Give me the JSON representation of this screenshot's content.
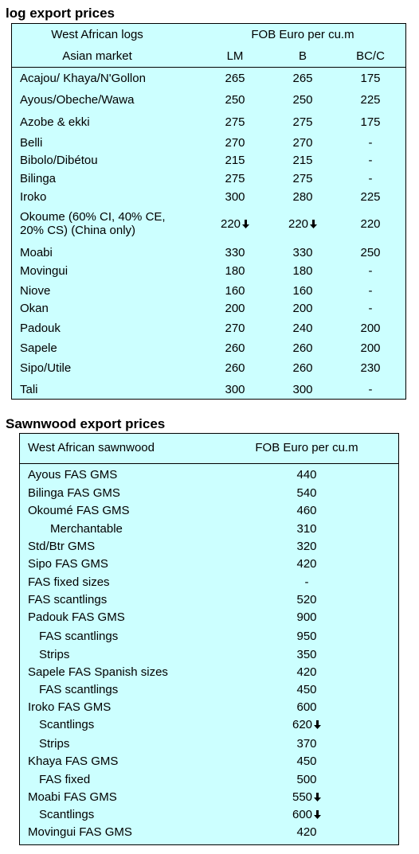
{
  "log": {
    "title": "log export prices",
    "header": {
      "col1_line1": "West African logs",
      "col1_line2": "Asian market",
      "price_heading": "FOB Euro per cu.m",
      "col_lm": "LM",
      "col_b": "B",
      "col_bc": "BC/C"
    },
    "rows": [
      {
        "name": "Acajou/ Khaya/N'Gollon",
        "lm": "265",
        "b": "265",
        "bc": "175"
      },
      {
        "name": "Ayous/Obeche/Wawa",
        "lm": "250",
        "b": "250",
        "bc": "225"
      },
      {
        "name": "Azobe & ekki",
        "lm": "275",
        "b": "275",
        "bc": "175"
      },
      {
        "name": "Belli",
        "lm": "270",
        "b": "270",
        "bc": "-"
      },
      {
        "name": "Bibolo/Dibétou",
        "lm": "215",
        "b": "215",
        "bc": "-"
      },
      {
        "name": "Bilinga",
        "lm": "275",
        "b": "275",
        "bc": "-"
      },
      {
        "name": "Iroko",
        "lm": "300",
        "b": "280",
        "bc": "225"
      },
      {
        "name_line1": "Okoume (60% CI, 40% CE,",
        "name_line2": "20% CS) (China only)",
        "lm": "220",
        "b": "220",
        "bc": "220",
        "lm_down": true,
        "b_down": true
      },
      {
        "name": "Moabi",
        "lm": "330",
        "b": "330",
        "bc": "250"
      },
      {
        "name": "Movingui",
        "lm": "180",
        "b": "180",
        "bc": "-"
      },
      {
        "name": "Niove",
        "lm": "160",
        "b": "160",
        "bc": "-"
      },
      {
        "name": "Okan",
        "lm": "200",
        "b": "200",
        "bc": "-"
      },
      {
        "name": "Padouk",
        "lm": "270",
        "b": "240",
        "bc": "200"
      },
      {
        "name": "Sapele",
        "lm": "260",
        "b": "260",
        "bc": "200"
      },
      {
        "name": "Sipo/Utile",
        "lm": "260",
        "b": "260",
        "bc": "230"
      },
      {
        "name": "Tali",
        "lm": "300",
        "b": "300",
        "bc": "-"
      }
    ]
  },
  "sawn": {
    "title": "Sawnwood export prices",
    "header": {
      "col1": "West African sawnwood",
      "price_heading": "FOB Euro per cu.m"
    },
    "rows": [
      {
        "name": "Ayous FAS GMS",
        "price": "440"
      },
      {
        "name": "Bilinga FAS GMS",
        "price": "540"
      },
      {
        "name": "Okoumé FAS GMS",
        "price": "460"
      },
      {
        "name": "Merchantable",
        "price": "310",
        "indent": 2
      },
      {
        "name": "Std/Btr GMS",
        "price": "320"
      },
      {
        "name": "Sipo FAS GMS",
        "price": "420"
      },
      {
        "name": "FAS fixed sizes",
        "price": "-"
      },
      {
        "name": "FAS scantlings",
        "price": "520"
      },
      {
        "name": "Padouk FAS GMS",
        "price": "900"
      },
      {
        "name": "FAS scantlings",
        "price": "950",
        "indent": 1
      },
      {
        "name": "Strips",
        "price": "350",
        "indent": 1
      },
      {
        "name": "Sapele FAS Spanish sizes",
        "price": "420"
      },
      {
        "name": "FAS scantlings",
        "price": "450",
        "indent": 1
      },
      {
        "name": "Iroko FAS GMS",
        "price": "600"
      },
      {
        "name": "Scantlings",
        "price": "620",
        "indent": 1,
        "down": true
      },
      {
        "name": "Strips",
        "price": "370",
        "indent": 1
      },
      {
        "name": "Khaya FAS GMS",
        "price": "450"
      },
      {
        "name": "FAS fixed",
        "price": "500",
        "indent": 1
      },
      {
        "name": "Moabi FAS GMS",
        "price": "550",
        "down": true
      },
      {
        "name": "Scantlings",
        "price": "600",
        "indent": 1,
        "down": true
      },
      {
        "name": "Movingui FAS GMS",
        "price": "420"
      }
    ]
  }
}
